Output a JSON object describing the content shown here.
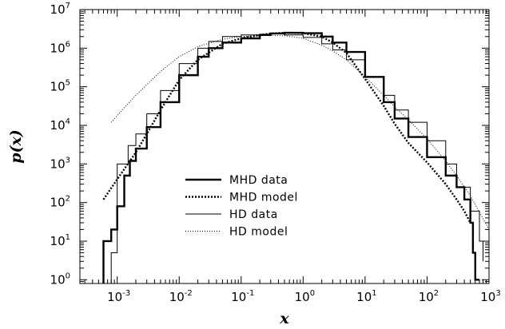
{
  "chart_data": {
    "type": "line",
    "title": "",
    "xlabel": "x",
    "ylabel": "p(x)",
    "xscale": "log",
    "yscale": "log",
    "xlim": [
      0.00025,
      1000
    ],
    "ylim": [
      0.8,
      10000000
    ],
    "x_ticks": [
      {
        "base": "10",
        "exp": "-3",
        "value": 0.001
      },
      {
        "base": "10",
        "exp": "-2",
        "value": 0.01
      },
      {
        "base": "10",
        "exp": "-1",
        "value": 0.1
      },
      {
        "base": "10",
        "exp": "0",
        "value": 1
      },
      {
        "base": "10",
        "exp": "1",
        "value": 10
      },
      {
        "base": "10",
        "exp": "2",
        "value": 100
      },
      {
        "base": "10",
        "exp": "3",
        "value": 1000
      }
    ],
    "y_ticks": [
      {
        "base": "10",
        "exp": "0",
        "value": 1
      },
      {
        "base": "10",
        "exp": "1",
        "value": 10
      },
      {
        "base": "10",
        "exp": "2",
        "value": 100
      },
      {
        "base": "10",
        "exp": "3",
        "value": 1000
      },
      {
        "base": "10",
        "exp": "4",
        "value": 10000
      },
      {
        "base": "10",
        "exp": "5",
        "value": 100000
      },
      {
        "base": "10",
        "exp": "6",
        "value": 1000000
      },
      {
        "base": "10",
        "exp": "7",
        "value": 10000000
      }
    ],
    "grid": false,
    "legend_position": "center-left inside plot",
    "series": [
      {
        "name": "MHD data",
        "line_style": "thick-solid",
        "step": true,
        "x": [
          0.0006,
          0.0008,
          0.001,
          0.0013,
          0.0016,
          0.002,
          0.003,
          0.005,
          0.01,
          0.02,
          0.03,
          0.05,
          0.1,
          0.2,
          0.3,
          0.5,
          0.7,
          1,
          2,
          3,
          5,
          10,
          20,
          30,
          50,
          100,
          200,
          300,
          400,
          500,
          550,
          600,
          700
        ],
        "y": [
          10,
          20,
          80,
          500,
          1200,
          2500,
          9000,
          40000,
          200000,
          600000,
          1000000,
          1400000,
          1800000,
          2200000,
          2400000,
          2500000,
          2500000,
          2450000,
          2000000,
          1400000,
          800000,
          180000,
          40000,
          15000,
          5000,
          1500,
          500,
          250,
          120,
          30,
          5,
          1,
          1
        ]
      },
      {
        "name": "MHD model",
        "line_style": "thick-dotted",
        "x": [
          0.0006,
          0.001,
          0.002,
          0.003,
          0.005,
          0.01,
          0.02,
          0.05,
          0.1,
          0.2,
          0.3,
          0.5,
          0.7,
          1,
          2,
          3,
          5,
          10,
          20,
          30,
          50,
          100,
          200,
          300,
          400,
          500
        ],
        "y": [
          120,
          400,
          2000,
          6000,
          25000,
          150000,
          500000,
          1300000,
          1800000,
          2200000,
          2400000,
          2500000,
          2500000,
          2450000,
          2000000,
          1400000,
          750000,
          160000,
          32000,
          11000,
          3500,
          1100,
          300,
          120,
          60,
          30
        ]
      },
      {
        "name": "HD data",
        "line_style": "thin-solid",
        "step": true,
        "x": [
          0.0008,
          0.001,
          0.0015,
          0.002,
          0.003,
          0.005,
          0.01,
          0.02,
          0.03,
          0.05,
          0.1,
          0.2,
          0.3,
          0.5,
          1,
          2,
          3,
          5,
          10,
          20,
          30,
          50,
          100,
          200,
          300,
          500,
          700,
          800
        ],
        "y": [
          5,
          1000,
          3000,
          6000,
          20000,
          80000,
          400000,
          1000000,
          1500000,
          2000000,
          2200000,
          2300000,
          2400000,
          2200000,
          1900000,
          1300000,
          900000,
          500000,
          180000,
          60000,
          25000,
          12000,
          4000,
          1000,
          250,
          60,
          10,
          3
        ]
      },
      {
        "name": "HD model",
        "line_style": "thin-dotted",
        "x": [
          0.0008,
          0.001,
          0.002,
          0.005,
          0.01,
          0.02,
          0.05,
          0.1,
          0.2,
          0.3,
          0.5,
          1,
          2,
          3,
          5,
          10,
          20,
          30,
          50,
          100,
          200,
          300,
          500,
          1000
        ],
        "y": [
          12000,
          18000,
          60000,
          250000,
          600000,
          1100000,
          1700000,
          2000000,
          2100000,
          2150000,
          2100000,
          1800000,
          1200000,
          850000,
          500000,
          180000,
          60000,
          30000,
          14000,
          4500,
          1200,
          500,
          150,
          20
        ]
      }
    ]
  }
}
